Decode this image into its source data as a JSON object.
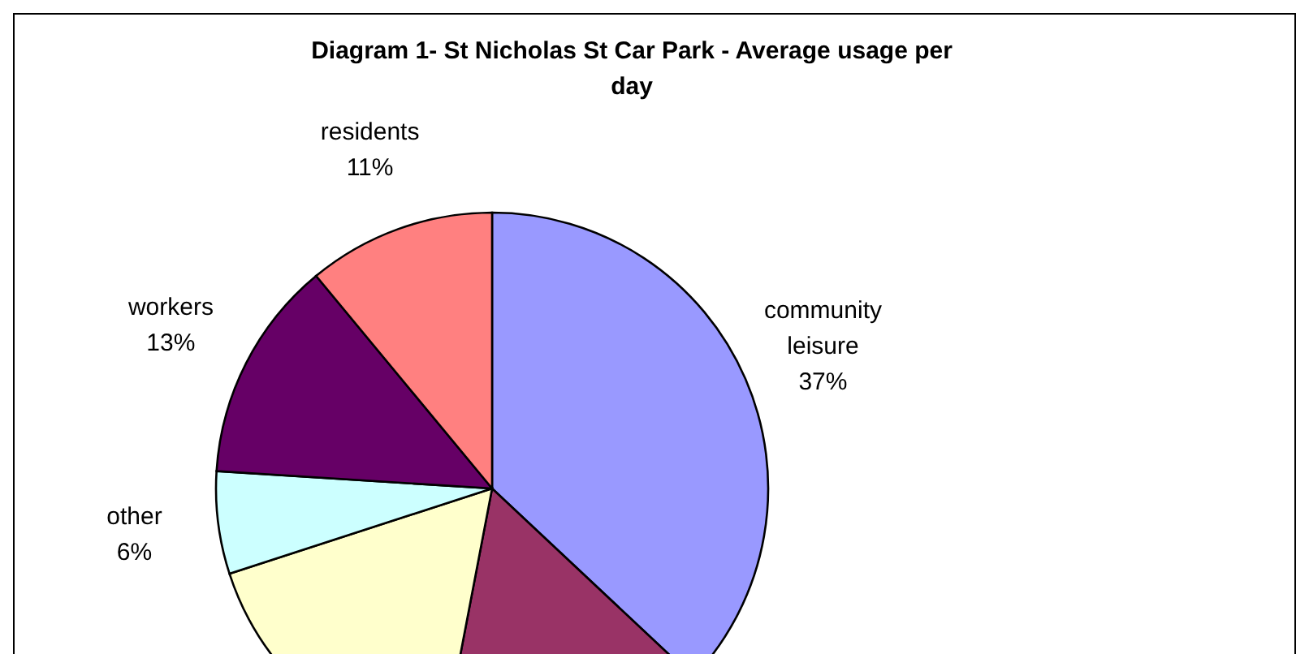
{
  "chart_data": {
    "type": "pie",
    "title": "Diagram 1- St Nicholas St Car Park - Average usage per day",
    "categories": [
      "community leisure",
      null,
      null,
      "other",
      "workers",
      "residents"
    ],
    "values": [
      37,
      16,
      17,
      6,
      13,
      11
    ],
    "value_labels": [
      "37%",
      null,
      null,
      "6%",
      "13%",
      "11%"
    ],
    "colors": [
      "#9999ff",
      "#993366",
      "#ffffcc",
      "#ccffff",
      "#660066",
      "#ff8080"
    ]
  }
}
